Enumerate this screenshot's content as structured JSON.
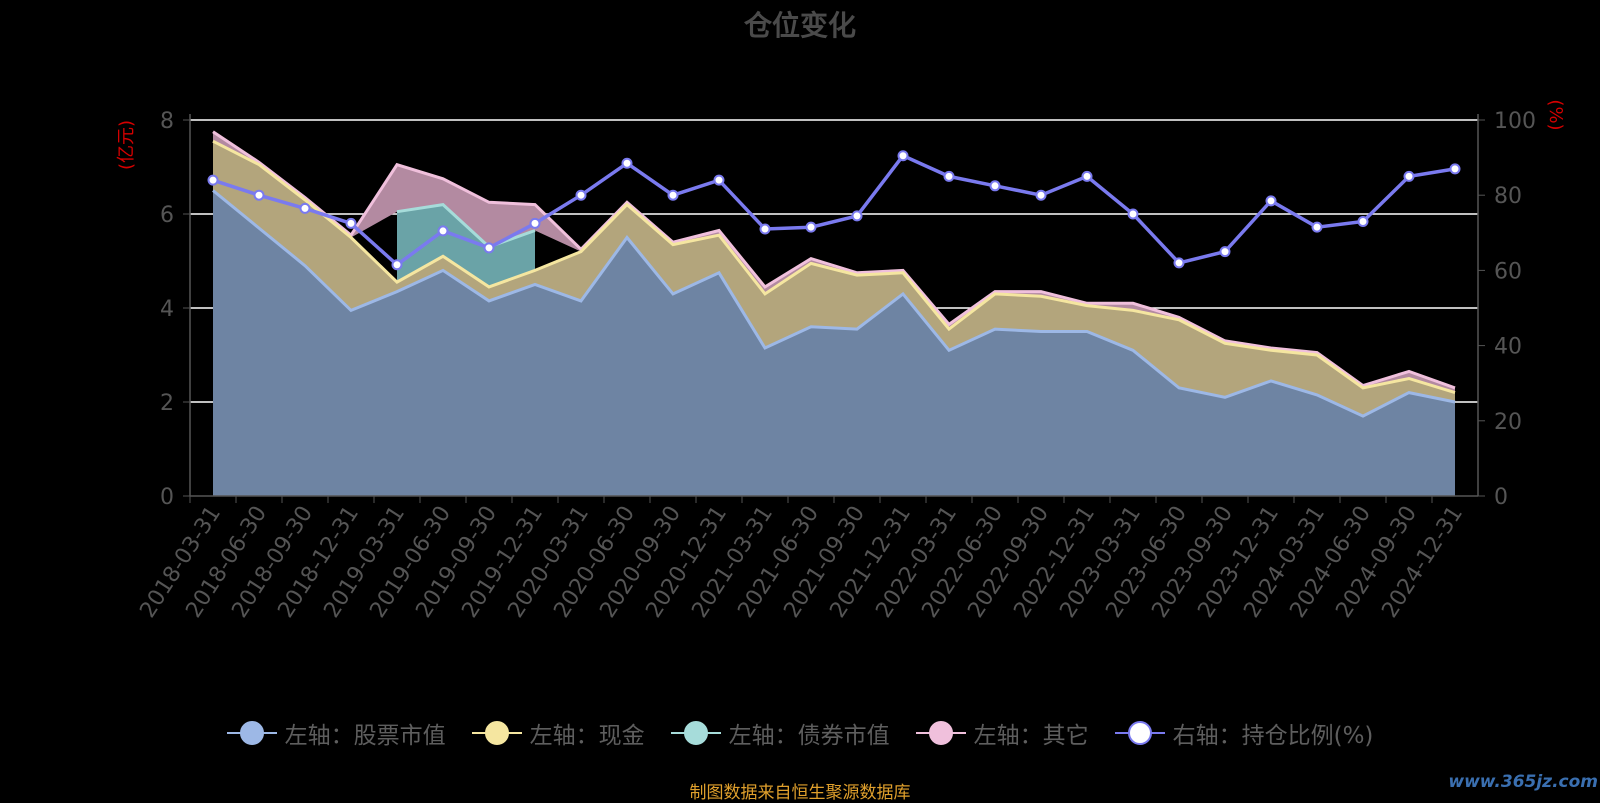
{
  "title": "仓位变化",
  "source_note": "制图数据来自恒生聚源数据库",
  "watermark": "www.365jz.com",
  "chart_data": {
    "type": "area",
    "title": "仓位变化",
    "y_left_label": "(亿元)",
    "y_right_label": "(%)",
    "y_left_range": [
      0,
      8
    ],
    "y_left_ticks": [
      "0",
      "2",
      "4",
      "6",
      "8"
    ],
    "y_right_range": [
      0,
      100
    ],
    "y_right_ticks": [
      "0",
      "20",
      "40",
      "60",
      "80",
      "100"
    ],
    "grid": true,
    "legend_position": "bottom",
    "categories": [
      "2018-03-31",
      "2018-06-30",
      "2018-09-30",
      "2018-12-31",
      "2019-03-31",
      "2019-06-30",
      "2019-09-30",
      "2019-12-31",
      "2020-03-31",
      "2020-06-30",
      "2020-09-30",
      "2020-12-31",
      "2021-03-31",
      "2021-06-30",
      "2021-09-30",
      "2021-12-31",
      "2022-03-31",
      "2022-06-30",
      "2022-09-30",
      "2022-12-31",
      "2023-03-31",
      "2023-06-30",
      "2023-09-30",
      "2023-12-31",
      "2024-03-31",
      "2024-06-30",
      "2024-09-30",
      "2024-12-31"
    ],
    "series": [
      {
        "name": "左轴：股票市值",
        "axis": "left",
        "color": "#9db8e6",
        "fill": "#6e84a3",
        "values": [
          6.5,
          5.7,
          4.9,
          3.95,
          4.35,
          4.8,
          4.15,
          4.5,
          4.15,
          5.5,
          4.3,
          4.75,
          3.15,
          3.6,
          3.55,
          4.3,
          3.1,
          3.55,
          3.5,
          3.5,
          3.1,
          2.3,
          2.1,
          2.45,
          2.15,
          1.7,
          2.2,
          2.0
        ]
      },
      {
        "name": "左轴：现金",
        "axis": "left",
        "color": "#f5e6a0",
        "fill": "#b3a57c",
        "values": [
          1.05,
          1.35,
          1.4,
          1.55,
          0.2,
          0.3,
          0.3,
          0.3,
          1.05,
          0.7,
          1.05,
          0.8,
          1.15,
          1.35,
          1.15,
          0.45,
          0.45,
          0.75,
          0.75,
          0.55,
          0.85,
          1.45,
          1.15,
          0.65,
          0.85,
          0.6,
          0.3,
          0.2
        ]
      },
      {
        "name": "左轴：债券市值",
        "axis": "left",
        "color": "#a6dcda",
        "fill": "#6aa3a7",
        "values": [
          0,
          0,
          0,
          0,
          1.5,
          1.1,
          0.85,
          0.85,
          0,
          0,
          0,
          0,
          0,
          0,
          0,
          0,
          0,
          0,
          0,
          0,
          0,
          0,
          0,
          0,
          0,
          0,
          0,
          0
        ]
      },
      {
        "name": "左轴：其它",
        "axis": "left",
        "color": "#f0c0dc",
        "fill": "#b38aa1",
        "values": [
          0.2,
          0.05,
          0.05,
          0.05,
          1.0,
          0.55,
          0.95,
          0.55,
          0.05,
          0.05,
          0.05,
          0.1,
          0.15,
          0.1,
          0.05,
          0.05,
          0.1,
          0.05,
          0.1,
          0.05,
          0.15,
          0.05,
          0.05,
          0.05,
          0.05,
          0.05,
          0.15,
          0.1
        ]
      },
      {
        "name": "右轴：持仓比例(%)",
        "axis": "right",
        "color": "#7a7aef",
        "fill": "none",
        "values": [
          84,
          80,
          76.5,
          72.5,
          61.5,
          70.5,
          66,
          72.5,
          80,
          88.5,
          80,
          84,
          71,
          71.5,
          74.5,
          90.5,
          85,
          82.5,
          80,
          85,
          75,
          62,
          65,
          78.5,
          71.5,
          73,
          85,
          87
        ]
      }
    ]
  }
}
